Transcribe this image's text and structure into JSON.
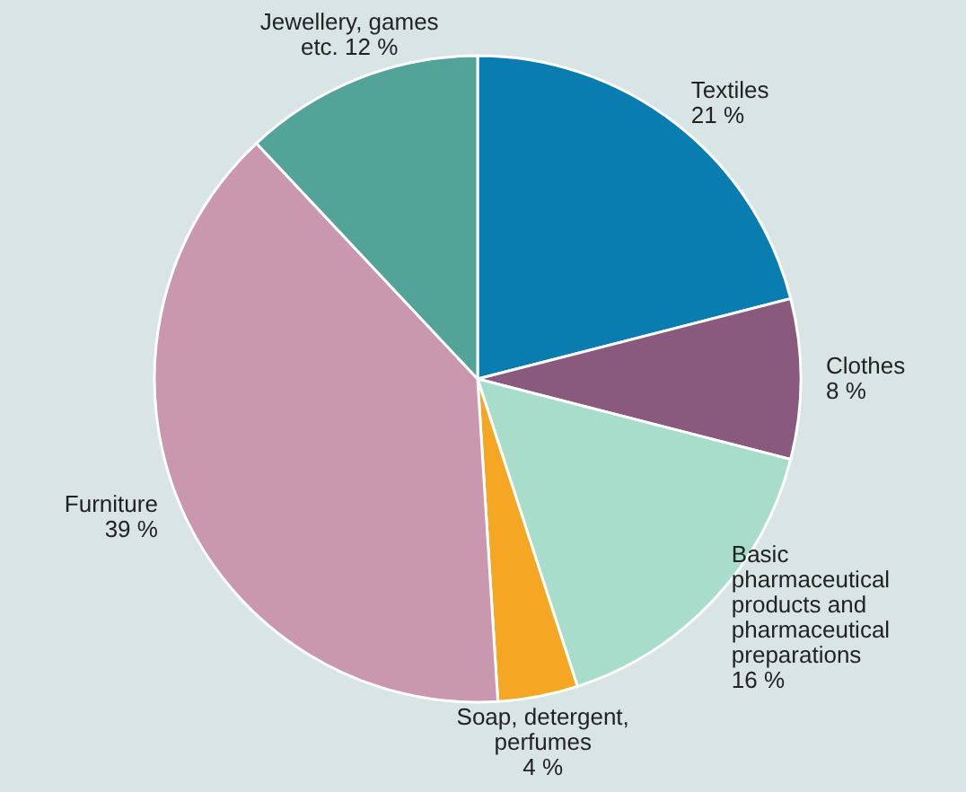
{
  "chart_data": {
    "type": "pie",
    "categories": [
      "Textiles",
      "Clothes",
      "Basic pharmaceutical products and pharmaceutical preparations",
      "Soap, detergent, perfumes",
      "Furniture",
      "Jewellery, games etc."
    ],
    "values": [
      21,
      8,
      16,
      4,
      39,
      12
    ],
    "value_labels": [
      "21 %",
      "8 %",
      "16 %",
      "4 %",
      "39 %",
      "12 %"
    ],
    "colors": [
      "#0a7db0",
      "#8a5a7e",
      "#a8dccb",
      "#f5a623",
      "#c997ae",
      "#52a398"
    ]
  }
}
